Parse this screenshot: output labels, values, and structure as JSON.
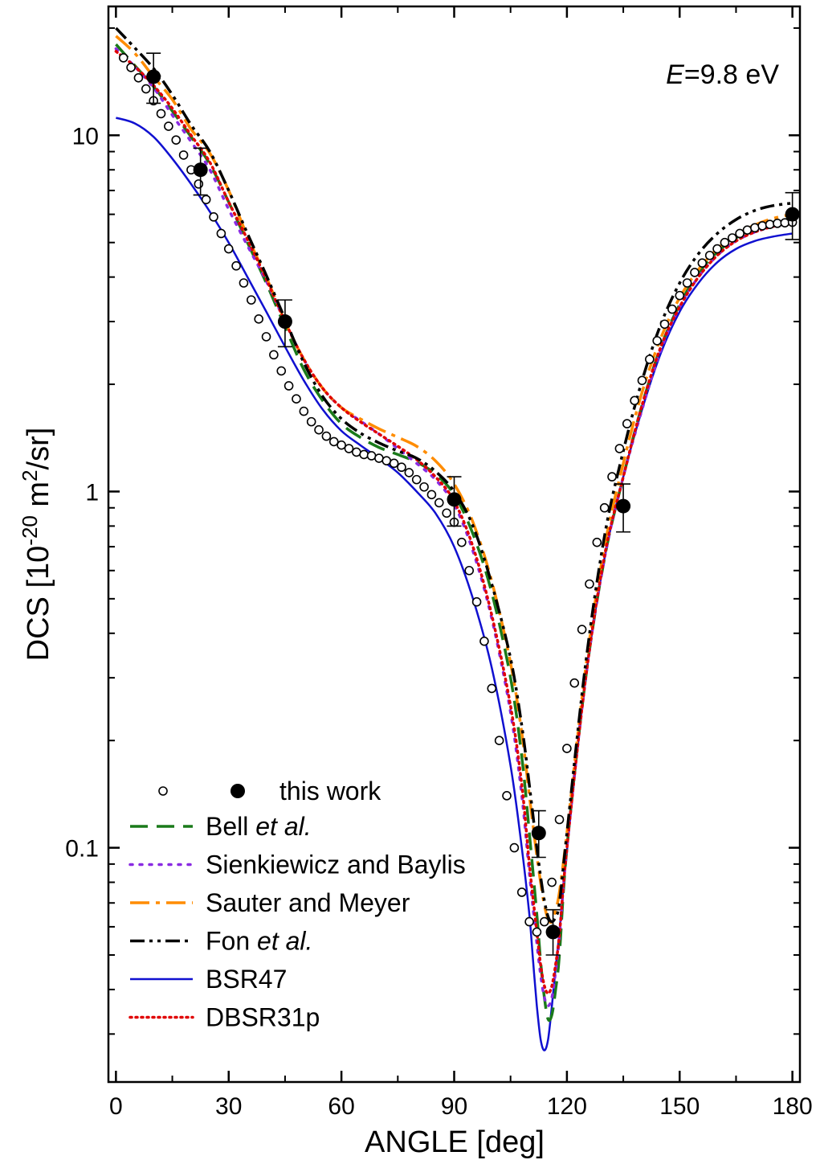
{
  "chart_data": {
    "type": "line",
    "xlabel": "ANGLE [deg]",
    "ylabel_main": "DCS [10",
    "ylabel_exp1": "-20",
    "ylabel_mid": " m",
    "ylabel_exp2": "2",
    "ylabel_tail": "/sr]",
    "xlim": [
      -2,
      182
    ],
    "ylim": [
      0.022,
      23
    ],
    "yscale": "log",
    "x_ticks": [
      0,
      30,
      60,
      90,
      120,
      150,
      180
    ],
    "x_tick_labels": [
      "0",
      "30",
      "60",
      "90",
      "120",
      "150",
      "180"
    ],
    "y_ticks": [
      0.1,
      1,
      10
    ],
    "y_tick_labels": [
      "0.1",
      "1",
      "10"
    ],
    "annotation": {
      "italic": "E",
      "rest": "=9.8 eV"
    },
    "legend_position": "bottom-left",
    "series": [
      {
        "key": "open",
        "name": "this work",
        "style": "open-circle",
        "color": "#000000",
        "x": [
          2,
          4,
          6,
          8,
          10,
          12,
          14,
          16,
          18,
          20,
          22,
          24,
          26,
          28,
          30,
          32,
          34,
          36,
          38,
          40,
          42,
          44,
          46,
          48,
          50,
          52,
          54,
          56,
          58,
          60,
          62,
          64,
          66,
          68,
          70,
          72,
          74,
          76,
          78,
          80,
          82,
          84,
          86,
          88,
          90,
          92,
          94,
          96,
          98,
          100,
          102,
          104,
          106,
          108,
          110,
          112,
          114,
          116,
          118,
          120,
          122,
          124,
          126,
          128,
          130,
          132,
          134,
          136,
          138,
          140,
          142,
          144,
          146,
          148,
          150,
          152,
          154,
          156,
          158,
          160,
          162,
          164,
          166,
          168,
          170,
          172,
          174,
          176,
          178,
          180
        ],
        "y": [
          16.5,
          15.5,
          14.5,
          13.5,
          12.5,
          11.5,
          10.6,
          9.7,
          8.8,
          8.0,
          7.3,
          6.6,
          5.9,
          5.3,
          4.8,
          4.3,
          3.85,
          3.45,
          3.05,
          2.72,
          2.42,
          2.18,
          1.98,
          1.82,
          1.68,
          1.57,
          1.49,
          1.43,
          1.38,
          1.35,
          1.32,
          1.29,
          1.27,
          1.26,
          1.24,
          1.22,
          1.2,
          1.17,
          1.13,
          1.08,
          1.03,
          0.98,
          0.93,
          0.87,
          0.82,
          0.72,
          0.6,
          0.49,
          0.38,
          0.28,
          0.2,
          0.14,
          0.1,
          0.075,
          0.062,
          0.058,
          0.062,
          0.08,
          0.12,
          0.19,
          0.29,
          0.41,
          0.55,
          0.72,
          0.9,
          1.1,
          1.32,
          1.55,
          1.8,
          2.05,
          2.35,
          2.65,
          2.95,
          3.25,
          3.55,
          3.85,
          4.12,
          4.38,
          4.6,
          4.8,
          5.0,
          5.15,
          5.3,
          5.42,
          5.5,
          5.57,
          5.62,
          5.66,
          5.68,
          5.7
        ]
      },
      {
        "key": "filled",
        "name": "this work",
        "style": "filled-circle",
        "color": "#000000",
        "x": [
          10,
          22.5,
          45,
          90,
          112.5,
          116.3,
          135,
          180
        ],
        "y": [
          14.6,
          8.0,
          3.0,
          0.95,
          0.11,
          0.058,
          0.91,
          6.0
        ],
        "err_lo": [
          12.3,
          6.8,
          2.55,
          0.8,
          0.094,
          0.05,
          0.77,
          5.1
        ],
        "err_hi": [
          17.0,
          9.2,
          3.45,
          1.1,
          0.127,
          0.067,
          1.05,
          6.9
        ]
      },
      {
        "key": "bell",
        "name": "Bell",
        "name_italic": "et al.",
        "style": "dashed",
        "color": "#1a7a1a",
        "x": [
          0,
          5,
          10,
          15,
          20,
          25,
          30,
          35,
          40,
          45,
          50,
          55,
          60,
          65,
          70,
          75,
          80,
          85,
          90,
          95,
          100,
          105,
          108,
          110,
          112,
          113,
          114,
          115,
          116,
          117,
          118,
          120,
          125,
          130,
          135,
          140,
          145,
          150,
          155,
          160,
          165,
          170,
          175,
          180
        ],
        "y": [
          18.0,
          15.7,
          13.7,
          11.7,
          9.9,
          8.3,
          6.5,
          5.0,
          3.85,
          2.9,
          2.2,
          1.8,
          1.55,
          1.42,
          1.33,
          1.27,
          1.21,
          1.12,
          0.98,
          0.76,
          0.52,
          0.3,
          0.18,
          0.11,
          0.065,
          0.048,
          0.038,
          0.033,
          0.034,
          0.04,
          0.05,
          0.1,
          0.3,
          0.65,
          1.1,
          1.75,
          2.55,
          3.35,
          4.1,
          4.7,
          5.15,
          5.5,
          5.7,
          5.85
        ]
      },
      {
        "key": "sienk",
        "name": "Sienkiewicz and Baylis",
        "style": "dotted",
        "color": "#8a2be2",
        "x": [
          0,
          5,
          10,
          15,
          20,
          25,
          30,
          35,
          40,
          45,
          50,
          55,
          60,
          65,
          70,
          75,
          80,
          85,
          90,
          95,
          100,
          105,
          108,
          110,
          112,
          113,
          114,
          115,
          116,
          117,
          118,
          120,
          125,
          130,
          135,
          140,
          145,
          150,
          155,
          160,
          165,
          170,
          175,
          180
        ],
        "y": [
          17.5,
          15.6,
          13.6,
          11.4,
          9.6,
          8.0,
          6.2,
          4.9,
          3.9,
          3.0,
          2.35,
          1.95,
          1.72,
          1.58,
          1.45,
          1.32,
          1.2,
          1.08,
          0.92,
          0.68,
          0.44,
          0.24,
          0.14,
          0.085,
          0.054,
          0.044,
          0.038,
          0.036,
          0.038,
          0.045,
          0.056,
          0.1,
          0.3,
          0.65,
          1.1,
          1.7,
          2.5,
          3.3,
          4.0,
          4.6,
          5.05,
          5.35,
          5.55,
          5.7
        ]
      },
      {
        "key": "sauter",
        "name": "Sauter and Meyer",
        "style": "dashdot",
        "color": "#ff8c00",
        "x": [
          0,
          5,
          10,
          15,
          20,
          25,
          30,
          35,
          40,
          45,
          50,
          55,
          60,
          65,
          70,
          75,
          80,
          85,
          90,
          95,
          100,
          105,
          108,
          110,
          112,
          113,
          114,
          115,
          116,
          117,
          118,
          120,
          125,
          130,
          135,
          140,
          145,
          150,
          155,
          160,
          165,
          170,
          175,
          180
        ],
        "y": [
          19.0,
          17.0,
          14.6,
          12.6,
          10.4,
          8.9,
          7.0,
          5.2,
          4.0,
          3.0,
          2.35,
          1.95,
          1.72,
          1.6,
          1.5,
          1.42,
          1.34,
          1.22,
          1.05,
          0.82,
          0.56,
          0.33,
          0.21,
          0.14,
          0.095,
          0.08,
          0.069,
          0.063,
          0.062,
          0.067,
          0.075,
          0.11,
          0.32,
          0.7,
          1.2,
          1.9,
          2.7,
          3.5,
          4.2,
          4.8,
          5.25,
          5.6,
          5.85,
          6.0
        ]
      },
      {
        "key": "fon",
        "name": "Fon",
        "name_italic": "et al.",
        "style": "dashdotdot",
        "color": "#000000",
        "x": [
          0,
          5,
          10,
          15,
          20,
          25,
          30,
          35,
          40,
          45,
          50,
          55,
          60,
          65,
          70,
          75,
          80,
          85,
          90,
          95,
          100,
          105,
          108,
          110,
          112,
          113,
          114,
          115,
          116,
          117,
          118,
          120,
          125,
          130,
          135,
          140,
          145,
          150,
          155,
          160,
          165,
          170,
          175,
          180
        ],
        "y": [
          20.0,
          17.6,
          15.4,
          13.0,
          10.7,
          9.0,
          7.0,
          5.3,
          4.05,
          3.05,
          2.3,
          1.85,
          1.6,
          1.46,
          1.37,
          1.3,
          1.24,
          1.14,
          1.0,
          0.8,
          0.55,
          0.34,
          0.22,
          0.15,
          0.1,
          0.083,
          0.071,
          0.064,
          0.062,
          0.064,
          0.07,
          0.11,
          0.33,
          0.75,
          1.3,
          2.05,
          2.95,
          3.85,
          4.65,
          5.3,
          5.8,
          6.15,
          6.35,
          6.45
        ]
      },
      {
        "key": "bsr47",
        "name": "BSR47",
        "style": "solid",
        "color": "#1010d0",
        "x": [
          0,
          5,
          10,
          15,
          20,
          25,
          30,
          35,
          40,
          45,
          50,
          55,
          60,
          65,
          70,
          75,
          80,
          85,
          90,
          95,
          100,
          105,
          108,
          110,
          111,
          112,
          113,
          114,
          115,
          116,
          117,
          118,
          120,
          125,
          130,
          135,
          140,
          145,
          150,
          155,
          160,
          165,
          170,
          175,
          180
        ],
        "y": [
          11.2,
          10.8,
          9.9,
          8.6,
          7.3,
          6.1,
          5.0,
          4.0,
          3.2,
          2.55,
          2.05,
          1.7,
          1.48,
          1.35,
          1.24,
          1.13,
          1.0,
          0.87,
          0.7,
          0.5,
          0.32,
          0.17,
          0.1,
          0.065,
          0.048,
          0.036,
          0.029,
          0.027,
          0.029,
          0.036,
          0.046,
          0.058,
          0.098,
          0.3,
          0.65,
          1.1,
          1.7,
          2.45,
          3.2,
          3.85,
          4.4,
          4.8,
          5.05,
          5.2,
          5.3
        ]
      },
      {
        "key": "dbsr",
        "name": "DBSR31p",
        "style": "densedot",
        "color": "#e00000",
        "x": [
          0,
          5,
          10,
          15,
          20,
          25,
          30,
          35,
          40,
          45,
          50,
          55,
          60,
          65,
          70,
          75,
          80,
          85,
          90,
          95,
          100,
          105,
          108,
          110,
          112,
          113,
          114,
          115,
          116,
          117,
          118,
          120,
          125,
          130,
          135,
          140,
          145,
          150,
          155,
          160,
          165,
          170,
          175,
          180
        ],
        "y": [
          17.2,
          15.6,
          13.8,
          11.9,
          10.0,
          8.4,
          6.5,
          5.1,
          3.95,
          3.0,
          2.35,
          1.95,
          1.72,
          1.57,
          1.45,
          1.34,
          1.23,
          1.1,
          0.94,
          0.7,
          0.45,
          0.25,
          0.15,
          0.09,
          0.058,
          0.047,
          0.041,
          0.039,
          0.041,
          0.047,
          0.057,
          0.1,
          0.3,
          0.66,
          1.1,
          1.75,
          2.55,
          3.3,
          4.0,
          4.6,
          5.05,
          5.35,
          5.55,
          5.65
        ]
      }
    ]
  }
}
